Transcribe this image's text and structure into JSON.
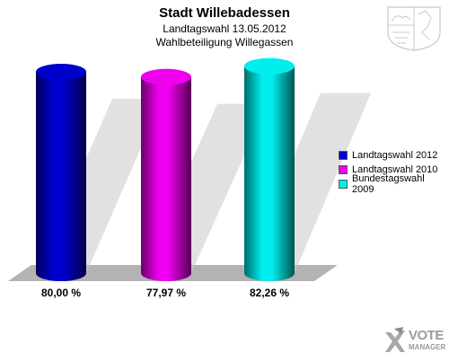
{
  "header": {
    "title": "Stadt Willebadessen",
    "subtitle_1": "Landtagswahl 13.05.2012",
    "subtitle_2": "Wahlbeteiligung Willegassen"
  },
  "chart_data": {
    "type": "bar",
    "title": "Stadt Willebadessen",
    "subtitle": [
      "Landtagswahl 13.05.2012",
      "Wahlbeteiligung Willegassen"
    ],
    "categories": [
      "Landtagswahl 2012",
      "Landtagswahl 2010",
      "Bundestagswahl 2009"
    ],
    "values": [
      80.0,
      77.97,
      82.26
    ],
    "value_labels": [
      "80,00 %",
      "77,97 %",
      "82,26 %"
    ],
    "colors": [
      "#0000cc",
      "#ee00ee",
      "#00eeee"
    ],
    "unit": "%",
    "legend": [
      "Landtagswahl 2012",
      "Landtagswahl 2010",
      "Bundestagswahl 2009"
    ],
    "legend_position": "right",
    "style": "3d-cylinder",
    "grid": false
  },
  "branding": {
    "logo_text_1": "VOTE",
    "logo_text_2": "MANAGER",
    "crest_icon": "nrw-coat-of-arms-icon"
  }
}
